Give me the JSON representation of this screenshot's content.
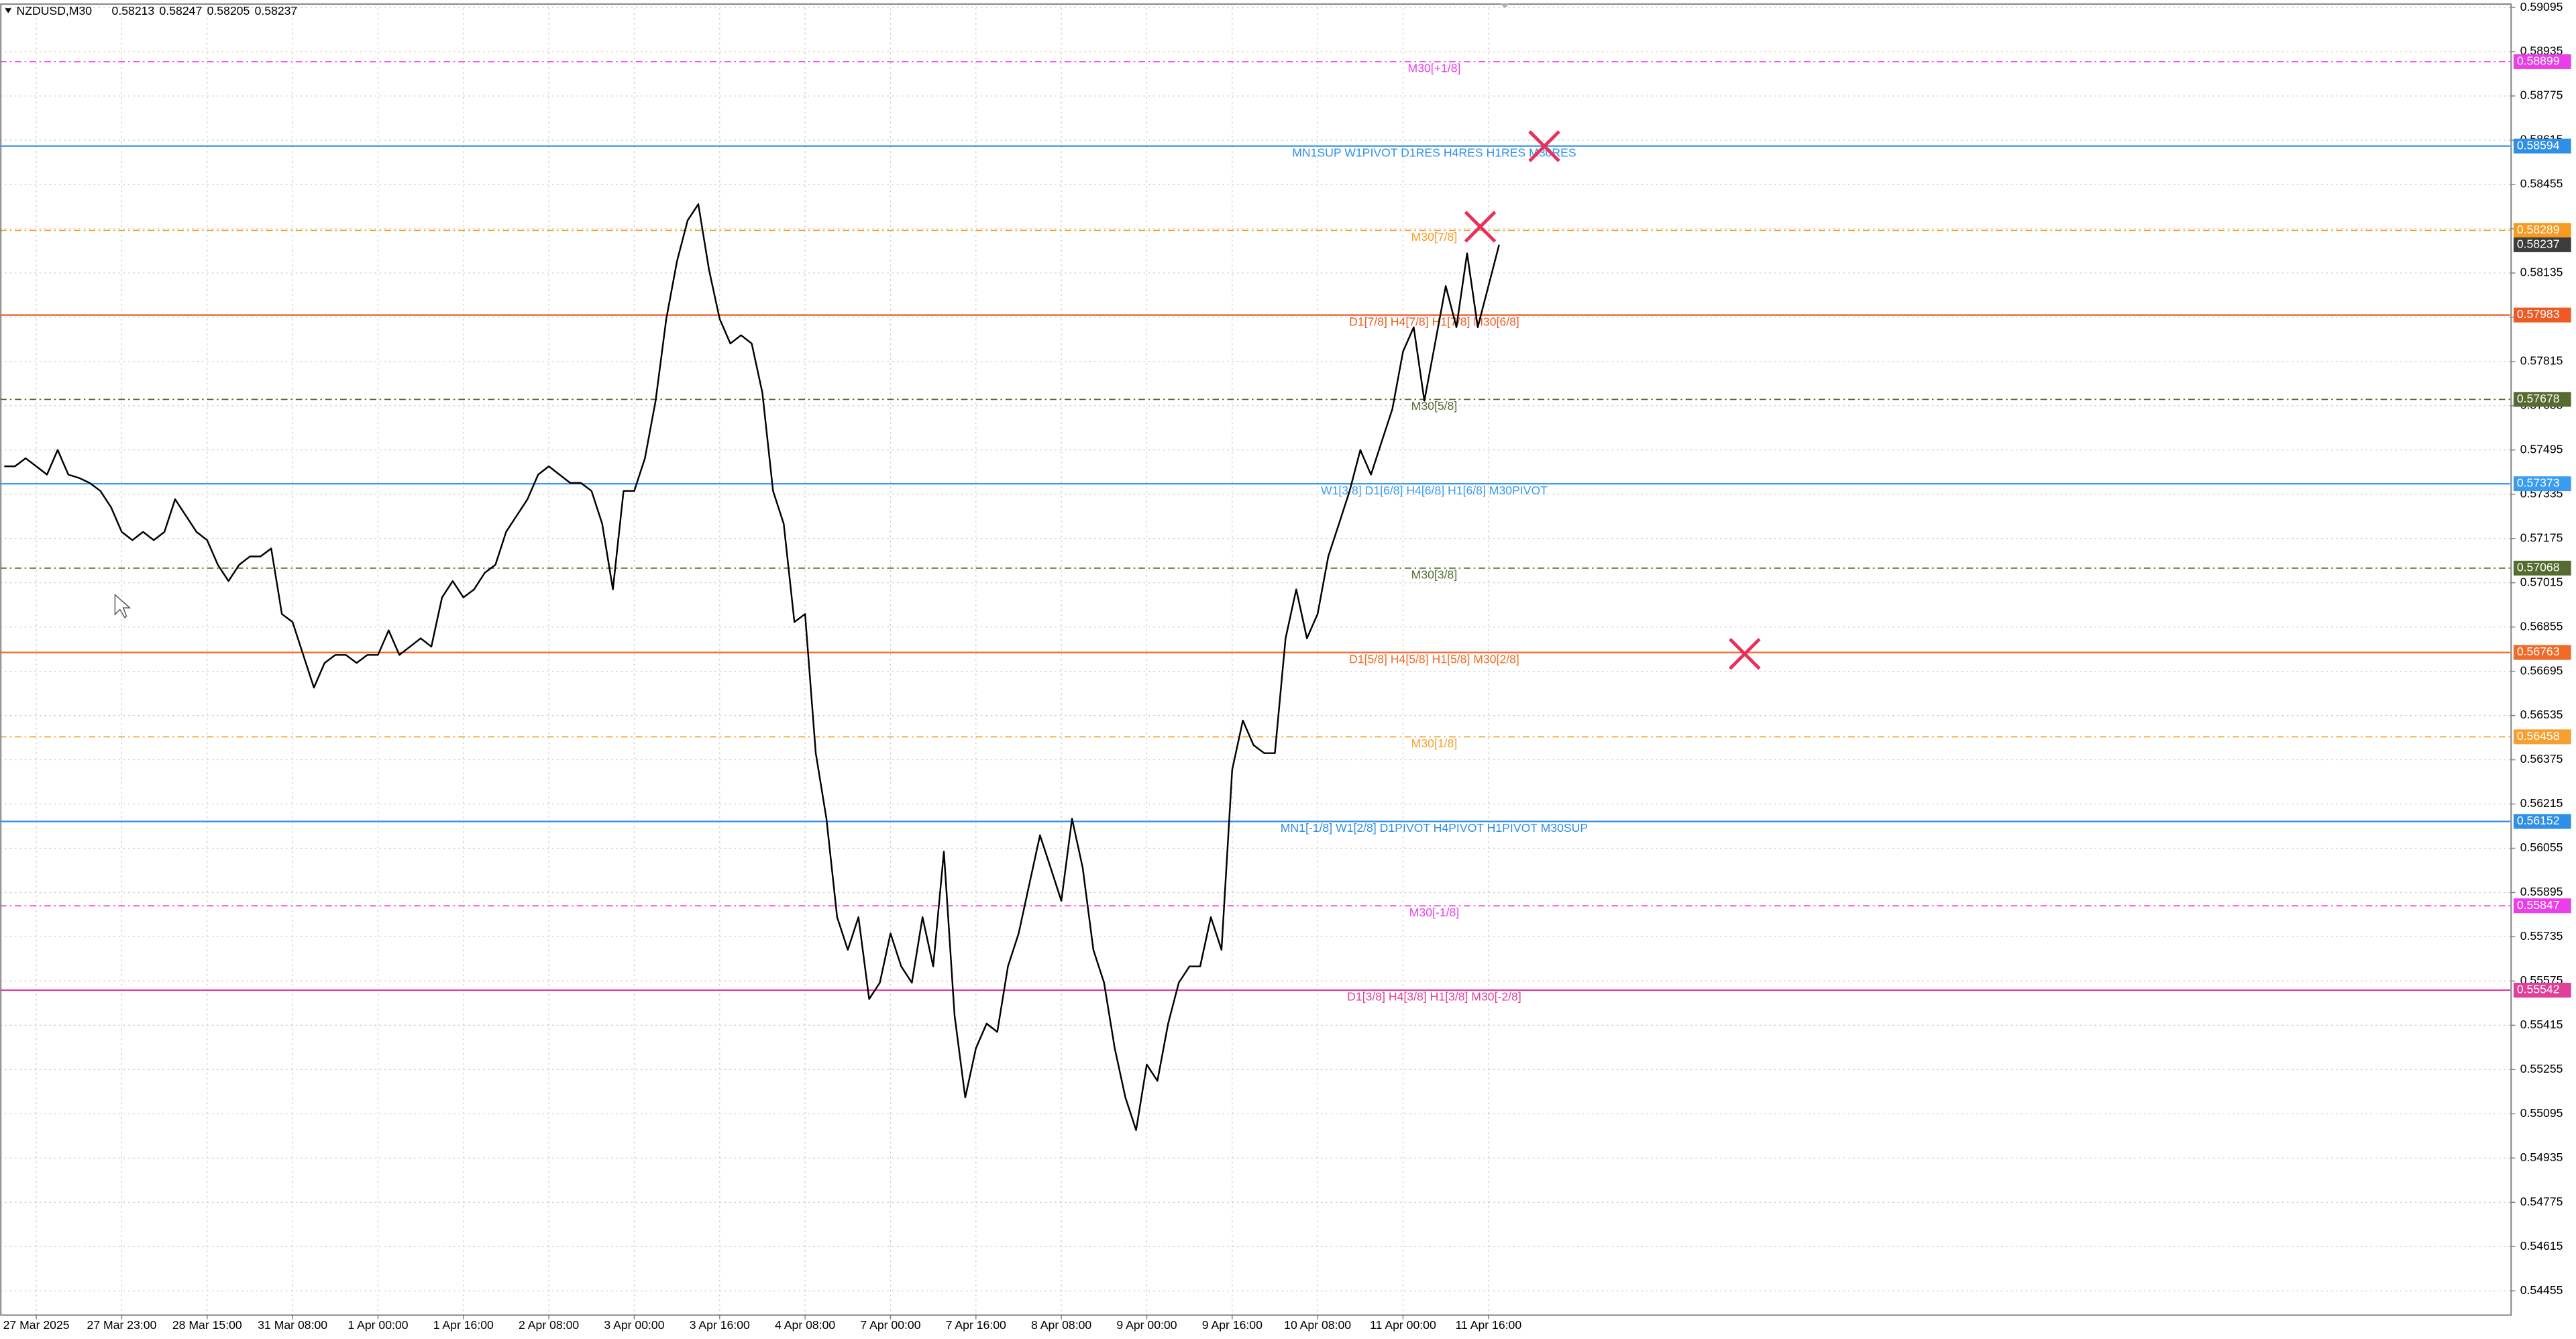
{
  "chart_data": {
    "type": "line",
    "symbol": "NZDUSD,M30",
    "ohlc": [
      0.58213,
      0.58247,
      0.58205,
      0.58237
    ],
    "color": "#000000",
    "grid": true,
    "xlim": [
      -3.4,
      231.7
    ],
    "ylim": [
      0.5437,
      0.5911
    ],
    "xticks": [
      {
        "value": 0,
        "label": "27 Mar 2025"
      },
      {
        "value": 8,
        "label": "27 Mar 23:00"
      },
      {
        "value": 16,
        "label": "28 Mar 15:00"
      },
      {
        "value": 24,
        "label": "31 Mar 08:00"
      },
      {
        "value": 32,
        "label": "1 Apr 00:00"
      },
      {
        "value": 40,
        "label": "1 Apr 16:00"
      },
      {
        "value": 48,
        "label": "2 Apr 08:00"
      },
      {
        "value": 56,
        "label": "3 Apr 00:00"
      },
      {
        "value": 64,
        "label": "3 Apr 16:00"
      },
      {
        "value": 72,
        "label": "4 Apr 08:00"
      },
      {
        "value": 80,
        "label": "7 Apr 00:00"
      },
      {
        "value": 88,
        "label": "7 Apr 16:00"
      },
      {
        "value": 96,
        "label": "8 Apr 08:00"
      },
      {
        "value": 104,
        "label": "9 Apr 00:00"
      },
      {
        "value": 112,
        "label": "9 Apr 16:00"
      },
      {
        "value": 120,
        "label": "10 Apr 08:00"
      },
      {
        "value": 128,
        "label": "11 Apr 00:00"
      },
      {
        "value": 136,
        "label": "11 Apr 16:00"
      }
    ],
    "yticks": [
      0.54455,
      0.54615,
      0.54775,
      0.54935,
      0.55095,
      0.55255,
      0.55415,
      0.55575,
      0.55735,
      0.55895,
      0.56055,
      0.56215,
      0.56375,
      0.56535,
      0.56695,
      0.56855,
      0.57015,
      0.57175,
      0.57335,
      0.57495,
      0.57655,
      0.57815,
      0.57975,
      0.58135,
      0.58295,
      0.58455,
      0.58615,
      0.58775,
      0.58935,
      0.59095
    ],
    "x": [
      -3,
      -2,
      -1,
      0,
      1,
      2,
      3,
      4,
      5,
      6,
      7,
      8,
      9,
      10,
      11,
      12,
      13,
      14,
      15,
      16,
      17,
      18,
      19,
      20,
      21,
      22,
      23,
      24,
      25,
      26,
      27,
      28,
      29,
      30,
      31,
      32,
      33,
      34,
      35,
      36,
      37,
      38,
      39,
      40,
      41,
      42,
      43,
      44,
      45,
      46,
      47,
      48,
      49,
      50,
      51,
      52,
      53,
      54,
      55,
      56,
      57,
      58,
      59,
      60,
      61,
      62,
      63,
      64,
      65,
      66,
      67,
      68,
      69,
      70,
      71,
      72,
      73,
      74,
      75,
      76,
      77,
      78,
      79,
      80,
      81,
      82,
      83,
      84,
      85,
      86,
      87,
      88,
      89,
      90,
      91,
      92,
      93,
      94,
      95,
      96,
      97,
      98,
      99,
      100,
      101,
      102,
      103,
      104,
      105,
      106,
      107,
      108,
      109,
      110,
      111,
      112,
      113,
      114,
      115,
      116,
      117,
      118,
      119,
      120,
      121,
      122,
      123,
      124,
      125,
      126,
      127,
      128,
      129,
      130,
      131,
      132,
      133,
      134,
      135,
      136,
      137
    ],
    "values": [
      0.57436,
      0.57436,
      0.57465,
      0.57436,
      0.57406,
      0.57495,
      0.57406,
      0.57394,
      0.57376,
      0.57347,
      0.57288,
      0.57199,
      0.57169,
      0.57199,
      0.57169,
      0.57199,
      0.57317,
      0.57258,
      0.57199,
      0.57169,
      0.5708,
      0.57021,
      0.5708,
      0.5711,
      0.5711,
      0.57139,
      0.56902,
      0.56873,
      0.56754,
      0.56636,
      0.56725,
      0.56754,
      0.56754,
      0.56725,
      0.56754,
      0.56754,
      0.56843,
      0.56754,
      0.56784,
      0.56814,
      0.56784,
      0.56962,
      0.57021,
      0.56962,
      0.56991,
      0.57051,
      0.5708,
      0.57199,
      0.57258,
      0.57317,
      0.57406,
      0.57436,
      0.57406,
      0.57376,
      0.57376,
      0.57347,
      0.57228,
      0.56991,
      0.57347,
      0.57347,
      0.57465,
      0.57673,
      0.57969,
      0.58177,
      0.58325,
      0.58384,
      0.58147,
      0.57969,
      0.5788,
      0.5791,
      0.5788,
      0.57702,
      0.57347,
      0.57228,
      0.56873,
      0.56902,
      0.56399,
      0.56162,
      0.55806,
      0.55688,
      0.55806,
      0.5551,
      0.55569,
      0.55747,
      0.55628,
      0.55569,
      0.55806,
      0.55628,
      0.56043,
      0.55451,
      0.55154,
      0.55332,
      0.55421,
      0.55391,
      0.55628,
      0.55747,
      0.55925,
      0.56102,
      0.55984,
      0.55865,
      0.56162,
      0.55984,
      0.55688,
      0.55569,
      0.55332,
      0.55154,
      0.55036,
      0.55273,
      0.55214,
      0.55421,
      0.55569,
      0.55628,
      0.55628,
      0.55806,
      0.55688,
      0.56339,
      0.56517,
      0.56428,
      0.56399,
      0.56399,
      0.56814,
      0.56991,
      0.56814,
      0.56902,
      0.5711,
      0.57228,
      0.57347,
      0.57495,
      0.57406,
      0.57525,
      0.57643,
      0.57851,
      0.57939,
      0.57673,
      0.5788,
      0.58088,
      0.57939,
      0.58206,
      0.57939,
      0.58088,
      0.58237
    ],
    "levels": [
      {
        "name": "M30[+1/8]",
        "value": 0.58899,
        "color": "#e93fe9",
        "style": "dashdot"
      },
      {
        "name": "MN1SUP W1PIVOT D1RES H4RES H1RES M30RES",
        "value": 0.58594,
        "color": "#2f8fe6",
        "style": "solid"
      },
      {
        "name": "M30[7/8]",
        "value": 0.58289,
        "color": "#f59b22",
        "style": "dashdot"
      },
      {
        "name": "D1[7/8] H4[7/8] H1[7/8] M30[6/8]",
        "value": 0.57983,
        "color": "#ee5a24",
        "style": "solid"
      },
      {
        "name": "M30[5/8]",
        "value": 0.57678,
        "color": "#556b2f",
        "style": "dashdot"
      },
      {
        "name": "W1[3/8] D1[6/8] H4[6/8] H1[6/8] M30PIVOT",
        "value": 0.57373,
        "color": "#3a9cf0",
        "style": "solid"
      },
      {
        "name": "M30[3/8]",
        "value": 0.57068,
        "color": "#556b2f",
        "style": "dashdot"
      },
      {
        "name": "D1[5/8] H4[5/8] H1[5/8] M30[2/8]",
        "value": 0.56763,
        "color": "#f06a28",
        "style": "solid"
      },
      {
        "name": "M30[1/8]",
        "value": 0.56458,
        "color": "#f5a030",
        "style": "dashdot"
      },
      {
        "name": "MN1[-1/8] W1[2/8] D1PIVOT H4PIVOT H1PIVOT M30SUP",
        "value": 0.56152,
        "color": "#2f8fe6",
        "style": "solid"
      },
      {
        "name": "M30[-1/8]",
        "value": 0.55847,
        "color": "#e93fe9",
        "style": "dashdot"
      },
      {
        "name": "D1[3/8] H4[3/8] H1[3/8] M30[-2/8]",
        "value": 0.55542,
        "color": "#e0409a",
        "style": "solid"
      }
    ]
  }
}
